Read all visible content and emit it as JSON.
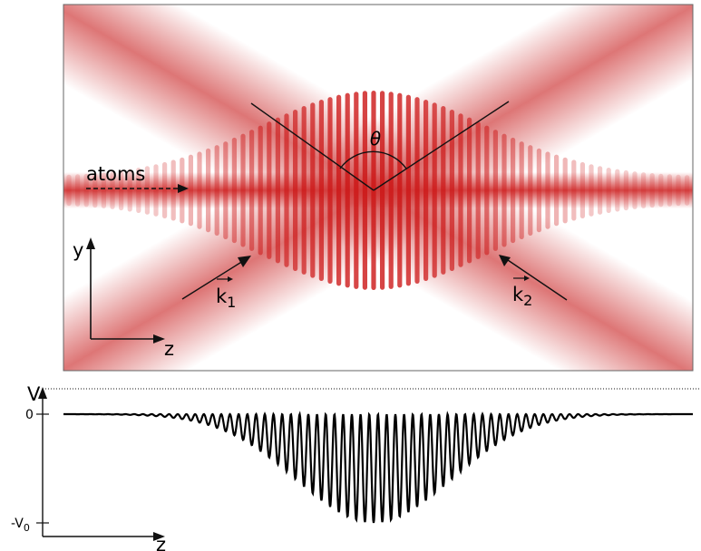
{
  "top_panel": {
    "labels": {
      "atoms": "atoms",
      "theta": "θ",
      "k1": "k",
      "k1_sub": "1",
      "k2": "k",
      "k2_sub": "2",
      "axis_y": "y",
      "axis_z": "z"
    },
    "colors": {
      "beam": "#d23a3a",
      "frame": "#666666"
    }
  },
  "potential_panel": {
    "labels": {
      "V": "V",
      "zero": "0",
      "neg_v0": "-V",
      "neg_v0_sub": "0",
      "axis_z": "z"
    }
  }
}
